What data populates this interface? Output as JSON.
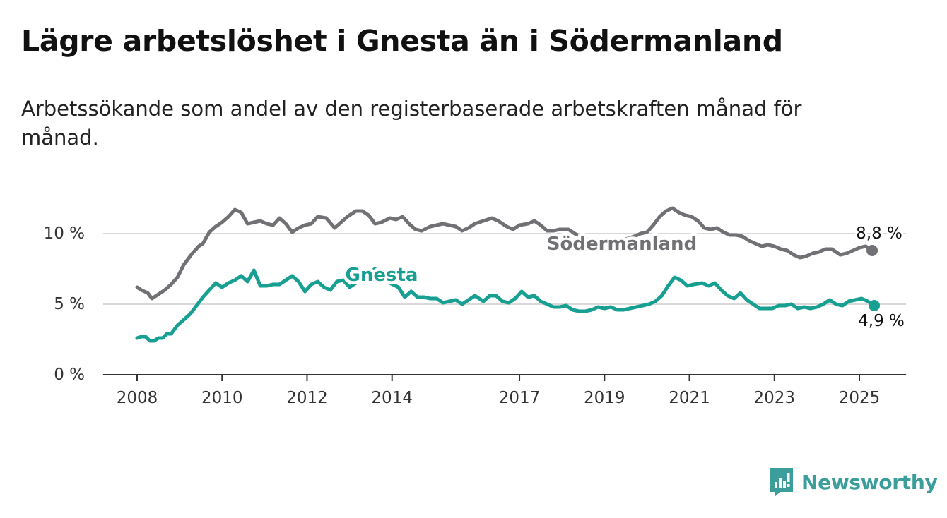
{
  "header": {
    "title": "Lägre arbetslöshet i Gnesta än i Södermanland",
    "subtitle": "Arbetssökande som andel av den registerbaserade arbetskraften månad för månad."
  },
  "brand": {
    "name": "Newsworthy",
    "icon": "newsworthy-logo-icon",
    "color": "#3b9e9a"
  },
  "chart_data": {
    "type": "line",
    "title": "Lägre arbetslöshet i Gnesta än i Södermanland",
    "subtitle": "Arbetssökande som andel av den registerbaserade arbetskraften månad för månad.",
    "x_axis": {
      "range": [
        2007.2,
        2026.1
      ],
      "ticks": [
        2008,
        2010,
        2012,
        2014,
        2017,
        2019,
        2021,
        2023,
        2025
      ],
      "tick_labels": [
        "2008",
        "2010",
        "2012",
        "2014",
        "2017",
        "2019",
        "2021",
        "2023",
        "2025"
      ]
    },
    "y_axis": {
      "range": [
        0,
        12
      ],
      "ticks": [
        0,
        5,
        10
      ],
      "tick_labels": [
        "0 %",
        "5 %",
        "10 %"
      ]
    },
    "grid": "horizontal",
    "legend": "direct labels on lines",
    "series": [
      {
        "name": "Södermanland",
        "color": "#717075",
        "end_label": "8,8 %",
        "points": [
          [
            2008.0,
            6.2
          ],
          [
            2008.1,
            6.0
          ],
          [
            2008.25,
            5.8
          ],
          [
            2008.35,
            5.4
          ],
          [
            2008.5,
            5.7
          ],
          [
            2008.65,
            6.0
          ],
          [
            2008.8,
            6.4
          ],
          [
            2008.95,
            6.9
          ],
          [
            2009.1,
            7.8
          ],
          [
            2009.3,
            8.6
          ],
          [
            2009.45,
            9.1
          ],
          [
            2009.55,
            9.3
          ],
          [
            2009.7,
            10.1
          ],
          [
            2009.85,
            10.5
          ],
          [
            2010.0,
            10.8
          ],
          [
            2010.15,
            11.2
          ],
          [
            2010.3,
            11.7
          ],
          [
            2010.45,
            11.5
          ],
          [
            2010.6,
            10.7
          ],
          [
            2010.75,
            10.8
          ],
          [
            2010.9,
            10.9
          ],
          [
            2011.05,
            10.7
          ],
          [
            2011.2,
            10.6
          ],
          [
            2011.35,
            11.1
          ],
          [
            2011.5,
            10.7
          ],
          [
            2011.65,
            10.1
          ],
          [
            2011.8,
            10.4
          ],
          [
            2011.95,
            10.6
          ],
          [
            2012.1,
            10.7
          ],
          [
            2012.25,
            11.2
          ],
          [
            2012.45,
            11.1
          ],
          [
            2012.65,
            10.4
          ],
          [
            2012.8,
            10.8
          ],
          [
            2012.95,
            11.2
          ],
          [
            2013.15,
            11.6
          ],
          [
            2013.3,
            11.6
          ],
          [
            2013.45,
            11.3
          ],
          [
            2013.6,
            10.7
          ],
          [
            2013.75,
            10.8
          ],
          [
            2013.95,
            11.1
          ],
          [
            2014.1,
            11.0
          ],
          [
            2014.25,
            11.2
          ],
          [
            2014.4,
            10.7
          ],
          [
            2014.55,
            10.3
          ],
          [
            2014.7,
            10.2
          ],
          [
            2014.9,
            10.5
          ],
          [
            2015.05,
            10.6
          ],
          [
            2015.2,
            10.7
          ],
          [
            2015.35,
            10.6
          ],
          [
            2015.5,
            10.5
          ],
          [
            2015.65,
            10.2
          ],
          [
            2015.8,
            10.4
          ],
          [
            2015.95,
            10.7
          ],
          [
            2016.15,
            10.9
          ],
          [
            2016.35,
            11.1
          ],
          [
            2016.5,
            10.9
          ],
          [
            2016.7,
            10.5
          ],
          [
            2016.85,
            10.3
          ],
          [
            2017.0,
            10.6
          ],
          [
            2017.2,
            10.7
          ],
          [
            2017.35,
            10.9
          ],
          [
            2017.5,
            10.6
          ],
          [
            2017.65,
            10.2
          ],
          [
            2017.8,
            10.2
          ],
          [
            2017.95,
            10.3
          ],
          [
            2018.15,
            10.3
          ],
          [
            2018.3,
            10.0
          ],
          [
            2018.5,
            9.7
          ],
          [
            2018.7,
            9.5
          ],
          [
            2018.9,
            9.6
          ],
          [
            2019.1,
            9.5
          ],
          [
            2019.3,
            9.5
          ],
          [
            2019.5,
            9.6
          ],
          [
            2019.7,
            9.8
          ],
          [
            2019.85,
            10.0
          ],
          [
            2020.0,
            10.1
          ],
          [
            2020.15,
            10.6
          ],
          [
            2020.3,
            11.2
          ],
          [
            2020.45,
            11.6
          ],
          [
            2020.6,
            11.8
          ],
          [
            2020.75,
            11.5
          ],
          [
            2020.9,
            11.3
          ],
          [
            2021.05,
            11.2
          ],
          [
            2021.2,
            10.9
          ],
          [
            2021.35,
            10.4
          ],
          [
            2021.5,
            10.3
          ],
          [
            2021.65,
            10.4
          ],
          [
            2021.8,
            10.1
          ],
          [
            2021.95,
            9.9
          ],
          [
            2022.1,
            9.9
          ],
          [
            2022.25,
            9.8
          ],
          [
            2022.4,
            9.5
          ],
          [
            2022.55,
            9.3
          ],
          [
            2022.7,
            9.1
          ],
          [
            2022.85,
            9.2
          ],
          [
            2023.0,
            9.1
          ],
          [
            2023.15,
            8.9
          ],
          [
            2023.3,
            8.8
          ],
          [
            2023.45,
            8.5
          ],
          [
            2023.6,
            8.3
          ],
          [
            2023.75,
            8.4
          ],
          [
            2023.9,
            8.6
          ],
          [
            2024.05,
            8.7
          ],
          [
            2024.2,
            8.9
          ],
          [
            2024.35,
            8.9
          ],
          [
            2024.55,
            8.5
          ],
          [
            2024.7,
            8.6
          ],
          [
            2024.85,
            8.8
          ],
          [
            2025.0,
            9.0
          ],
          [
            2025.15,
            9.1
          ],
          [
            2025.3,
            8.8
          ]
        ]
      },
      {
        "name": "Gnesta",
        "color": "#17a092",
        "end_label": "4,9 %",
        "points": [
          [
            2008.0,
            2.6
          ],
          [
            2008.1,
            2.7
          ],
          [
            2008.2,
            2.7
          ],
          [
            2008.3,
            2.4
          ],
          [
            2008.4,
            2.4
          ],
          [
            2008.5,
            2.6
          ],
          [
            2008.6,
            2.6
          ],
          [
            2008.7,
            2.9
          ],
          [
            2008.8,
            2.9
          ],
          [
            2008.95,
            3.5
          ],
          [
            2009.1,
            3.9
          ],
          [
            2009.25,
            4.3
          ],
          [
            2009.4,
            4.9
          ],
          [
            2009.55,
            5.5
          ],
          [
            2009.7,
            6.0
          ],
          [
            2009.85,
            6.5
          ],
          [
            2010.0,
            6.2
          ],
          [
            2010.15,
            6.5
          ],
          [
            2010.3,
            6.7
          ],
          [
            2010.45,
            7.0
          ],
          [
            2010.6,
            6.6
          ],
          [
            2010.75,
            7.4
          ],
          [
            2010.9,
            6.3
          ],
          [
            2011.05,
            6.3
          ],
          [
            2011.2,
            6.4
          ],
          [
            2011.35,
            6.4
          ],
          [
            2011.5,
            6.7
          ],
          [
            2011.65,
            7.0
          ],
          [
            2011.8,
            6.6
          ],
          [
            2011.95,
            5.9
          ],
          [
            2012.1,
            6.4
          ],
          [
            2012.25,
            6.6
          ],
          [
            2012.4,
            6.2
          ],
          [
            2012.55,
            6.0
          ],
          [
            2012.7,
            6.6
          ],
          [
            2012.85,
            6.7
          ],
          [
            2013.0,
            6.2
          ],
          [
            2013.15,
            6.5
          ],
          [
            2013.3,
            7.0
          ],
          [
            2013.45,
            7.2
          ],
          [
            2013.6,
            7.5
          ],
          [
            2013.8,
            6.9
          ],
          [
            2013.95,
            6.5
          ],
          [
            2014.15,
            6.2
          ],
          [
            2014.3,
            5.5
          ],
          [
            2014.45,
            5.9
          ],
          [
            2014.6,
            5.5
          ],
          [
            2014.75,
            5.5
          ],
          [
            2014.9,
            5.4
          ],
          [
            2015.05,
            5.4
          ],
          [
            2015.2,
            5.1
          ],
          [
            2015.35,
            5.2
          ],
          [
            2015.5,
            5.3
          ],
          [
            2015.65,
            5.0
          ],
          [
            2015.8,
            5.3
          ],
          [
            2015.95,
            5.6
          ],
          [
            2016.15,
            5.2
          ],
          [
            2016.3,
            5.6
          ],
          [
            2016.45,
            5.6
          ],
          [
            2016.6,
            5.2
          ],
          [
            2016.75,
            5.1
          ],
          [
            2016.9,
            5.4
          ],
          [
            2017.05,
            5.9
          ],
          [
            2017.2,
            5.5
          ],
          [
            2017.35,
            5.6
          ],
          [
            2017.5,
            5.2
          ],
          [
            2017.65,
            5.0
          ],
          [
            2017.8,
            4.8
          ],
          [
            2017.95,
            4.8
          ],
          [
            2018.1,
            4.9
          ],
          [
            2018.25,
            4.6
          ],
          [
            2018.4,
            4.5
          ],
          [
            2018.55,
            4.5
          ],
          [
            2018.7,
            4.6
          ],
          [
            2018.85,
            4.8
          ],
          [
            2019.0,
            4.7
          ],
          [
            2019.15,
            4.8
          ],
          [
            2019.3,
            4.6
          ],
          [
            2019.45,
            4.6
          ],
          [
            2019.6,
            4.7
          ],
          [
            2019.75,
            4.8
          ],
          [
            2019.9,
            4.9
          ],
          [
            2020.05,
            5.0
          ],
          [
            2020.2,
            5.2
          ],
          [
            2020.35,
            5.6
          ],
          [
            2020.5,
            6.3
          ],
          [
            2020.65,
            6.9
          ],
          [
            2020.8,
            6.7
          ],
          [
            2020.95,
            6.3
          ],
          [
            2021.1,
            6.4
          ],
          [
            2021.3,
            6.5
          ],
          [
            2021.45,
            6.3
          ],
          [
            2021.6,
            6.5
          ],
          [
            2021.75,
            6.0
          ],
          [
            2021.9,
            5.6
          ],
          [
            2022.05,
            5.4
          ],
          [
            2022.2,
            5.8
          ],
          [
            2022.35,
            5.3
          ],
          [
            2022.5,
            5.0
          ],
          [
            2022.65,
            4.7
          ],
          [
            2022.8,
            4.7
          ],
          [
            2022.95,
            4.7
          ],
          [
            2023.1,
            4.9
          ],
          [
            2023.25,
            4.9
          ],
          [
            2023.4,
            5.0
          ],
          [
            2023.55,
            4.7
          ],
          [
            2023.7,
            4.8
          ],
          [
            2023.85,
            4.7
          ],
          [
            2024.0,
            4.8
          ],
          [
            2024.15,
            5.0
          ],
          [
            2024.3,
            5.3
          ],
          [
            2024.45,
            5.0
          ],
          [
            2024.6,
            4.9
          ],
          [
            2024.75,
            5.2
          ],
          [
            2024.9,
            5.3
          ],
          [
            2025.05,
            5.4
          ],
          [
            2025.2,
            5.2
          ],
          [
            2025.35,
            4.9
          ]
        ]
      }
    ]
  }
}
